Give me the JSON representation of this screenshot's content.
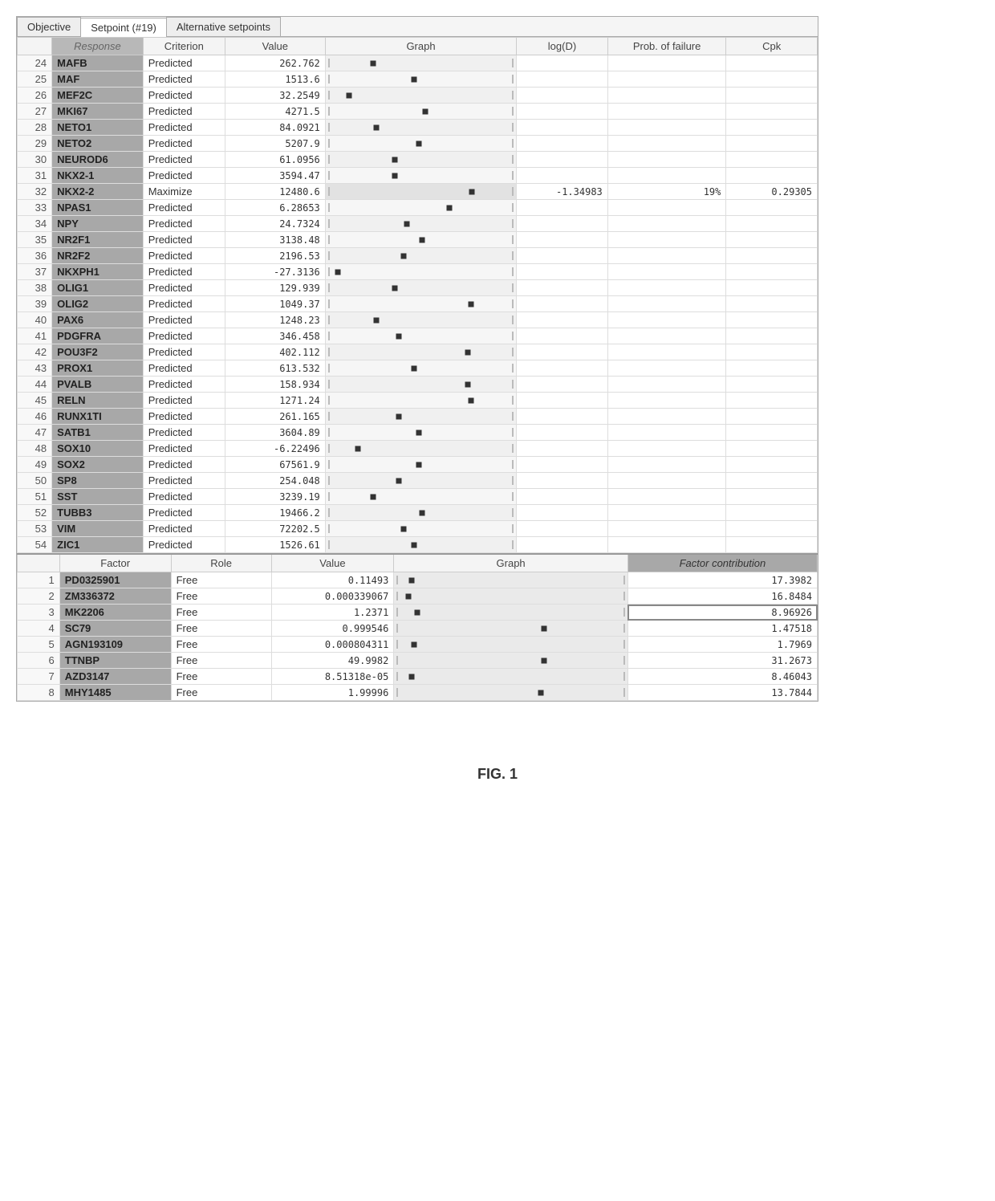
{
  "colors": {
    "window_border": "#aaaaaa",
    "header_bg": "#f4f4f4",
    "response_name_bg": "#a8a8a8",
    "marker": "#333333",
    "text": "#333333"
  },
  "tabs": [
    {
      "label": "Objective",
      "active": false
    },
    {
      "label": "Setpoint (#19)",
      "active": true
    },
    {
      "label": "Alternative setpoints",
      "active": false
    }
  ],
  "responses": {
    "columns": {
      "rownum": "",
      "response": "Response",
      "criterion": "Criterion",
      "value": "Value",
      "graph": "Graph",
      "logd": "log(D)",
      "pfail": "Prob. of failure",
      "cpk": "Cpk"
    },
    "rows": [
      {
        "n": 24,
        "name": "MAFB",
        "crit": "Predicted",
        "val": "262.762",
        "pos": 0.28,
        "logd": "",
        "pfail": "",
        "cpk": ""
      },
      {
        "n": 25,
        "name": "MAF",
        "crit": "Predicted",
        "val": "1513.6",
        "pos": 0.55,
        "logd": "",
        "pfail": "",
        "cpk": ""
      },
      {
        "n": 26,
        "name": "MEF2C",
        "crit": "Predicted",
        "val": "32.2549",
        "pos": 0.12,
        "logd": "",
        "pfail": "",
        "cpk": ""
      },
      {
        "n": 27,
        "name": "MKI67",
        "crit": "Predicted",
        "val": "4271.5",
        "pos": 0.62,
        "logd": "",
        "pfail": "",
        "cpk": ""
      },
      {
        "n": 28,
        "name": "NETO1",
        "crit": "Predicted",
        "val": "84.0921",
        "pos": 0.3,
        "logd": "",
        "pfail": "",
        "cpk": ""
      },
      {
        "n": 29,
        "name": "NETO2",
        "crit": "Predicted",
        "val": "5207.9",
        "pos": 0.58,
        "logd": "",
        "pfail": "",
        "cpk": ""
      },
      {
        "n": 30,
        "name": "NEUROD6",
        "crit": "Predicted",
        "val": "61.0956",
        "pos": 0.42,
        "logd": "",
        "pfail": "",
        "cpk": ""
      },
      {
        "n": 31,
        "name": "NKX2-1",
        "crit": "Predicted",
        "val": "3594.47",
        "pos": 0.42,
        "logd": "",
        "pfail": "",
        "cpk": ""
      },
      {
        "n": 32,
        "name": "NKX2-2",
        "crit": "Maximize",
        "val": "12480.6",
        "pos": 0.93,
        "logd": "-1.34983",
        "pfail": "19%",
        "cpk": "0.29305",
        "hi": true
      },
      {
        "n": 33,
        "name": "NPAS1",
        "crit": "Predicted",
        "val": "6.28653",
        "pos": 0.78,
        "logd": "",
        "pfail": "",
        "cpk": ""
      },
      {
        "n": 34,
        "name": "NPY",
        "crit": "Predicted",
        "val": "24.7324",
        "pos": 0.5,
        "logd": "",
        "pfail": "",
        "cpk": ""
      },
      {
        "n": 35,
        "name": "NR2F1",
        "crit": "Predicted",
        "val": "3138.48",
        "pos": 0.6,
        "logd": "",
        "pfail": "",
        "cpk": ""
      },
      {
        "n": 36,
        "name": "NR2F2",
        "crit": "Predicted",
        "val": "2196.53",
        "pos": 0.48,
        "logd": "",
        "pfail": "",
        "cpk": ""
      },
      {
        "n": 37,
        "name": "NKXPH1",
        "crit": "Predicted",
        "val": "-27.3136",
        "pos": 0.05,
        "logd": "",
        "pfail": "",
        "cpk": ""
      },
      {
        "n": 38,
        "name": "OLIG1",
        "crit": "Predicted",
        "val": "129.939",
        "pos": 0.42,
        "logd": "",
        "pfail": "",
        "cpk": ""
      },
      {
        "n": 39,
        "name": "OLIG2",
        "crit": "Predicted",
        "val": "1049.37",
        "pos": 0.92,
        "logd": "",
        "pfail": "",
        "cpk": ""
      },
      {
        "n": 40,
        "name": "PAX6",
        "crit": "Predicted",
        "val": "1248.23",
        "pos": 0.3,
        "logd": "",
        "pfail": "",
        "cpk": ""
      },
      {
        "n": 41,
        "name": "PDGFRA",
        "crit": "Predicted",
        "val": "346.458",
        "pos": 0.45,
        "logd": "",
        "pfail": "",
        "cpk": ""
      },
      {
        "n": 42,
        "name": "POU3F2",
        "crit": "Predicted",
        "val": "402.112",
        "pos": 0.9,
        "logd": "",
        "pfail": "",
        "cpk": ""
      },
      {
        "n": 43,
        "name": "PROX1",
        "crit": "Predicted",
        "val": "613.532",
        "pos": 0.55,
        "logd": "",
        "pfail": "",
        "cpk": ""
      },
      {
        "n": 44,
        "name": "PVALB",
        "crit": "Predicted",
        "val": "158.934",
        "pos": 0.9,
        "logd": "",
        "pfail": "",
        "cpk": ""
      },
      {
        "n": 45,
        "name": "RELN",
        "crit": "Predicted",
        "val": "1271.24",
        "pos": 0.92,
        "logd": "",
        "pfail": "",
        "cpk": ""
      },
      {
        "n": 46,
        "name": "RUNX1TI",
        "crit": "Predicted",
        "val": "261.165",
        "pos": 0.45,
        "logd": "",
        "pfail": "",
        "cpk": ""
      },
      {
        "n": 47,
        "name": "SATB1",
        "crit": "Predicted",
        "val": "3604.89",
        "pos": 0.58,
        "logd": "",
        "pfail": "",
        "cpk": ""
      },
      {
        "n": 48,
        "name": "SOX10",
        "crit": "Predicted",
        "val": "-6.22496",
        "pos": 0.18,
        "logd": "",
        "pfail": "",
        "cpk": ""
      },
      {
        "n": 49,
        "name": "SOX2",
        "crit": "Predicted",
        "val": "67561.9",
        "pos": 0.58,
        "logd": "",
        "pfail": "",
        "cpk": ""
      },
      {
        "n": 50,
        "name": "SP8",
        "crit": "Predicted",
        "val": "254.048",
        "pos": 0.45,
        "logd": "",
        "pfail": "",
        "cpk": ""
      },
      {
        "n": 51,
        "name": "SST",
        "crit": "Predicted",
        "val": "3239.19",
        "pos": 0.28,
        "logd": "",
        "pfail": "",
        "cpk": ""
      },
      {
        "n": 52,
        "name": "TUBB3",
        "crit": "Predicted",
        "val": "19466.2",
        "pos": 0.6,
        "logd": "",
        "pfail": "",
        "cpk": ""
      },
      {
        "n": 53,
        "name": "VIM",
        "crit": "Predicted",
        "val": "72202.5",
        "pos": 0.48,
        "logd": "",
        "pfail": "",
        "cpk": ""
      },
      {
        "n": 54,
        "name": "ZIC1",
        "crit": "Predicted",
        "val": "1526.61",
        "pos": 0.55,
        "logd": "",
        "pfail": "",
        "cpk": ""
      }
    ]
  },
  "factors": {
    "columns": {
      "rownum": "",
      "factor": "Factor",
      "role": "Role",
      "value": "Value",
      "graph": "Graph",
      "fcontrib": "Factor contribution"
    },
    "rows": [
      {
        "n": 1,
        "name": "PD0325901",
        "role": "Free",
        "val": "0.11493",
        "pos": 0.08,
        "fcontrib": "17.3982"
      },
      {
        "n": 2,
        "name": "ZM336372",
        "role": "Free",
        "val": "0.000339067",
        "pos": 0.06,
        "fcontrib": "16.8484"
      },
      {
        "n": 3,
        "name": "MK2206",
        "role": "Free",
        "val": "1.2371",
        "pos": 0.12,
        "fcontrib": "8.96926",
        "hi": true
      },
      {
        "n": 4,
        "name": "SC79",
        "role": "Free",
        "val": "0.999546",
        "pos": 0.95,
        "fcontrib": "1.47518"
      },
      {
        "n": 5,
        "name": "AGN193109",
        "role": "Free",
        "val": "0.000804311",
        "pos": 0.1,
        "fcontrib": "1.7969"
      },
      {
        "n": 6,
        "name": "TTNBP",
        "role": "Free",
        "val": "49.9982",
        "pos": 0.95,
        "fcontrib": "31.2673"
      },
      {
        "n": 7,
        "name": "AZD3147",
        "role": "Free",
        "val": "8.51318e-05",
        "pos": 0.08,
        "fcontrib": "8.46043"
      },
      {
        "n": 8,
        "name": "MHY1485",
        "role": "Free",
        "val": "1.99996",
        "pos": 0.93,
        "fcontrib": "13.7844"
      }
    ]
  },
  "figure_label": "FIG. 1"
}
